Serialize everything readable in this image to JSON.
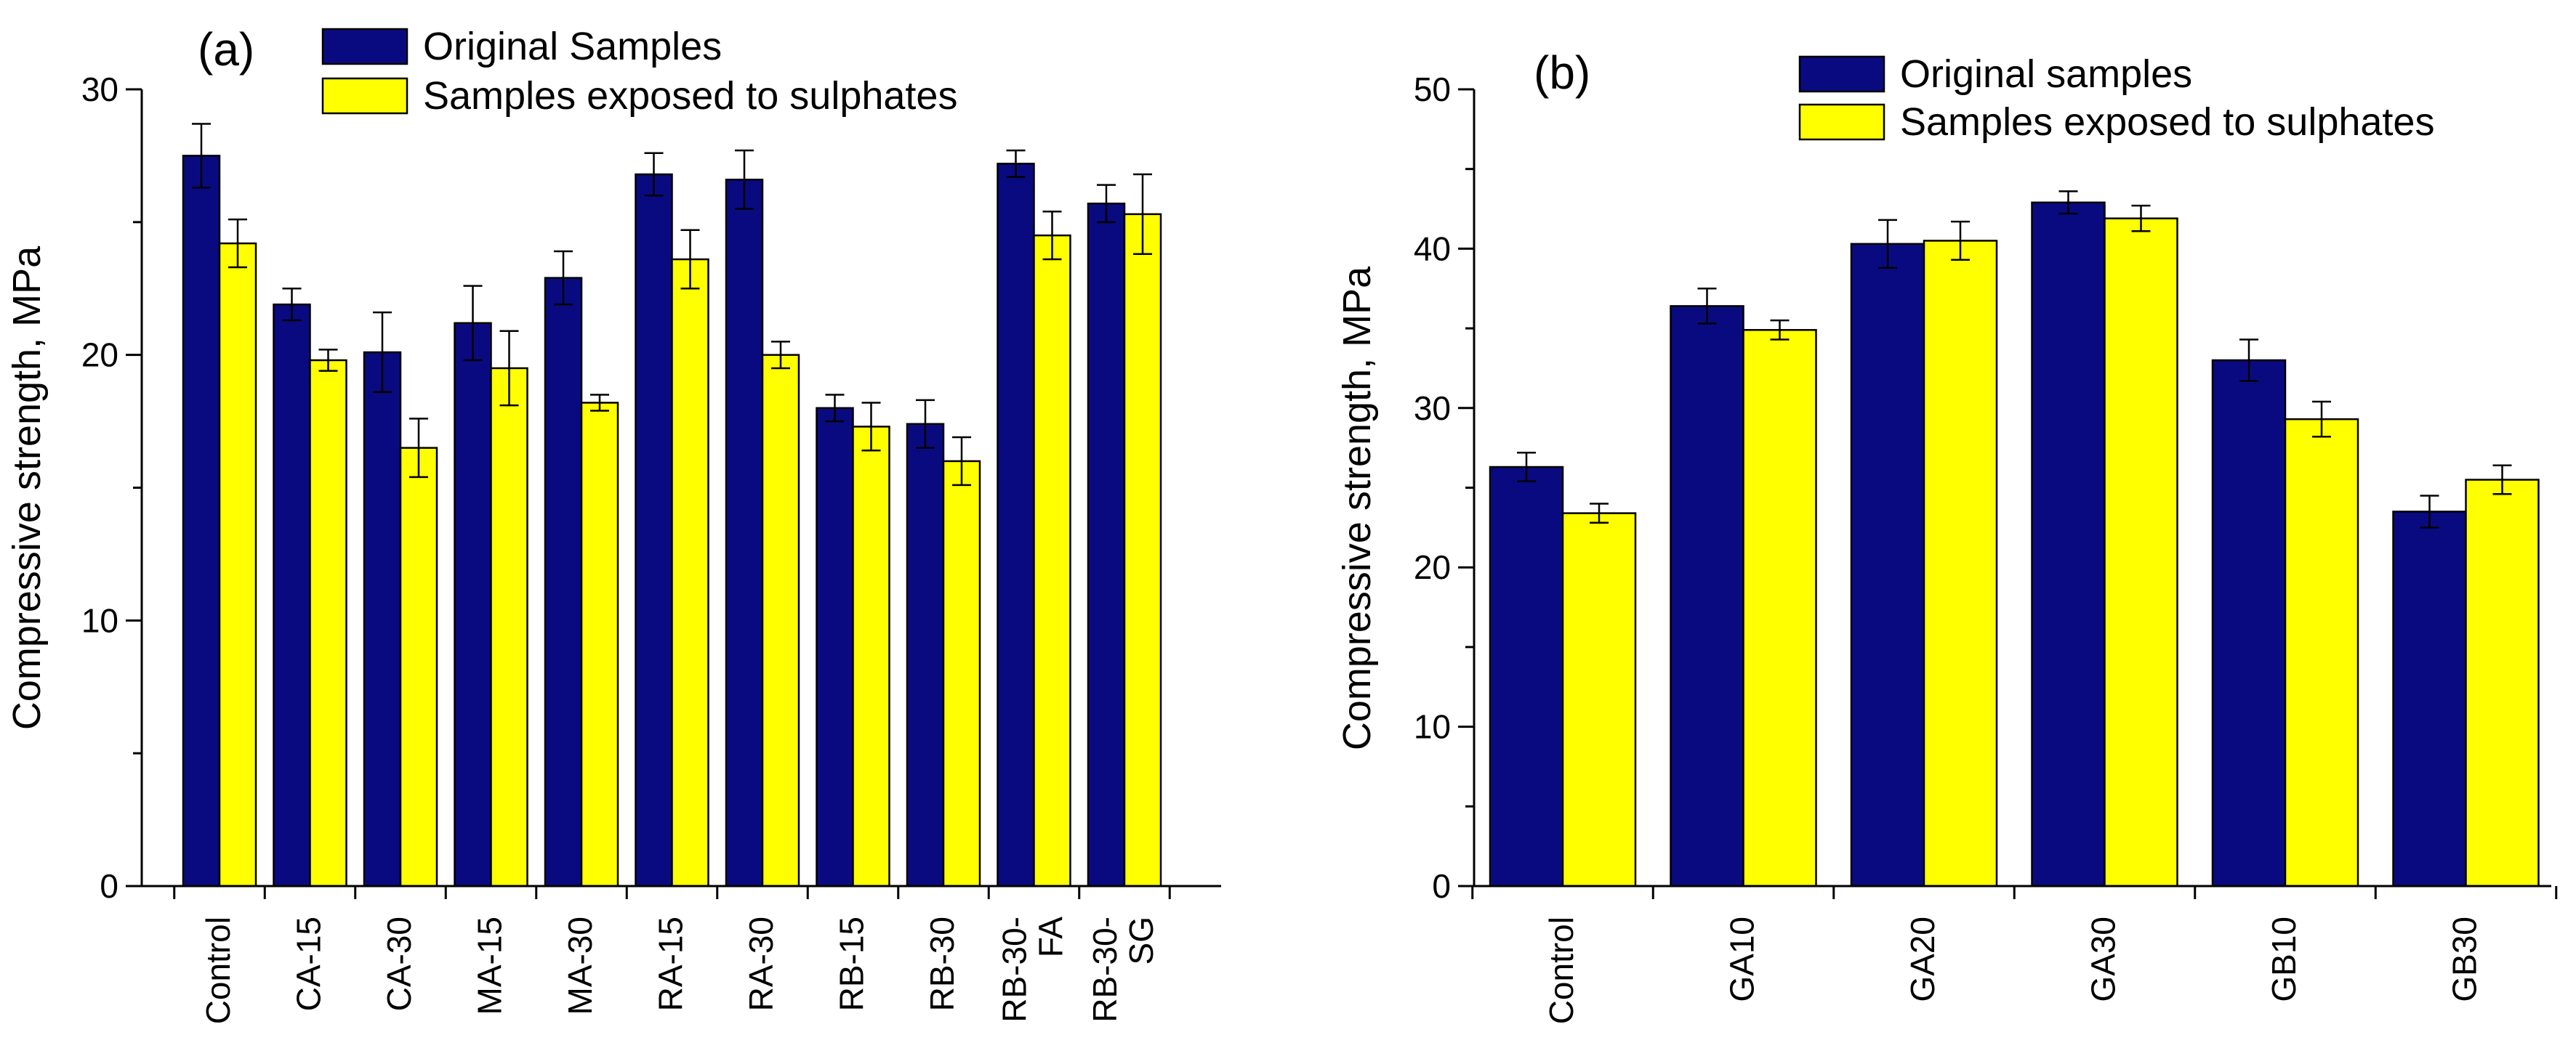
{
  "chart_data": [
    {
      "panel_label": "(a)",
      "type": "bar",
      "ylabel": "Compressive strength, MPa",
      "xlabel": "",
      "ylim": [
        0,
        30
      ],
      "yticks": [
        "0",
        "10",
        "20",
        "30"
      ],
      "categories": [
        [
          "Control"
        ],
        [
          "CA-15"
        ],
        [
          "CA-30"
        ],
        [
          "MA-15"
        ],
        [
          "MA-30"
        ],
        [
          "RA-15"
        ],
        [
          "RA-30"
        ],
        [
          "RB-15"
        ],
        [
          "RB-30"
        ],
        [
          "RB-30-",
          "FA"
        ],
        [
          "RB-30-",
          "SG"
        ]
      ],
      "series": [
        {
          "name": "Original Samples",
          "color": "#0a0a80",
          "values": [
            27.5,
            21.9,
            20.1,
            21.2,
            22.9,
            26.8,
            26.6,
            18.0,
            17.4,
            27.2,
            25.7
          ],
          "errors": [
            1.2,
            0.6,
            1.5,
            1.4,
            1.0,
            0.8,
            1.1,
            0.5,
            0.9,
            0.5,
            0.7
          ]
        },
        {
          "name": "Samples exposed to sulphates",
          "color": "#ffff00",
          "values": [
            24.2,
            19.8,
            16.5,
            19.5,
            18.2,
            23.6,
            20.0,
            17.3,
            16.0,
            24.5,
            25.3
          ],
          "errors": [
            0.9,
            0.4,
            1.1,
            1.4,
            0.3,
            1.1,
            0.5,
            0.9,
            0.9,
            0.9,
            1.5
          ]
        }
      ],
      "legend_position": "top-center"
    },
    {
      "panel_label": "(b)",
      "type": "bar",
      "ylabel": "Compressive strength, MPa",
      "xlabel": "",
      "ylim": [
        0,
        50
      ],
      "yticks": [
        "0",
        "10",
        "20",
        "30",
        "40",
        "50"
      ],
      "categories": [
        [
          "Control"
        ],
        [
          "GA10"
        ],
        [
          "GA20"
        ],
        [
          "GA30"
        ],
        [
          "GB10"
        ],
        [
          "GB30"
        ]
      ],
      "series": [
        {
          "name": "Original samples",
          "color": "#0a0a80",
          "values": [
            26.3,
            36.4,
            40.3,
            42.9,
            33.0,
            23.5
          ],
          "errors": [
            0.9,
            1.1,
            1.5,
            0.7,
            1.3,
            1.0
          ]
        },
        {
          "name": "Samples exposed to sulphates",
          "color": "#ffff00",
          "values": [
            23.4,
            34.9,
            40.5,
            41.9,
            29.3,
            25.5
          ],
          "errors": [
            0.6,
            0.6,
            1.2,
            0.8,
            1.1,
            0.9
          ]
        }
      ],
      "legend_position": "top-center"
    }
  ]
}
